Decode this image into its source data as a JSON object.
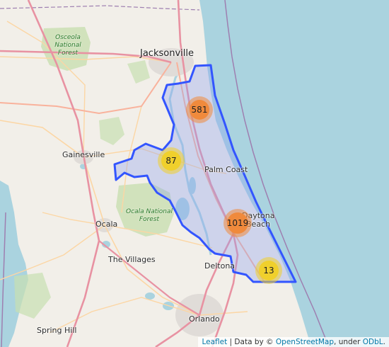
{
  "colors": {
    "water": "#aad3df",
    "land": "#f2efe9",
    "forest_green": "#c8dfb0",
    "polygon_stroke": "#3355ff",
    "polygon_fill": "#8da0f0",
    "cluster_orange": "#f08a3c",
    "cluster_yellow": "#f0d02c",
    "motorway": "#e892a2",
    "trunk": "#f9b29c",
    "primary": "#fcd6a4",
    "boundary": "#9e7fb0"
  },
  "places": {
    "jacksonville": "Jacksonville",
    "gainesville": "Gainesville",
    "palm_coast": "Palm Coast",
    "ocala": "Ocala",
    "the_villages": "The Villages",
    "deltona": "Deltona",
    "daytona_a": "Daytona",
    "daytona_b": "Beach",
    "orlando": "Orlando",
    "spring_hill": "Spring Hill",
    "osceola_forest": [
      "Osceola",
      "National",
      "Forest"
    ],
    "ocala_forest": [
      "Ocala National",
      "Forest"
    ]
  },
  "clusters": [
    {
      "id": "north",
      "count": "581",
      "size": "medium"
    },
    {
      "id": "west",
      "count": "87",
      "size": "small"
    },
    {
      "id": "daytona",
      "count": "1019",
      "size": "medium"
    },
    {
      "id": "south",
      "count": "13",
      "size": "small"
    }
  ],
  "attribution": {
    "leaflet": "Leaflet",
    "sep": " | Data by © ",
    "osm": "OpenStreetMap",
    "under": ", under ",
    "odbl": "ODbL",
    "end": "."
  }
}
